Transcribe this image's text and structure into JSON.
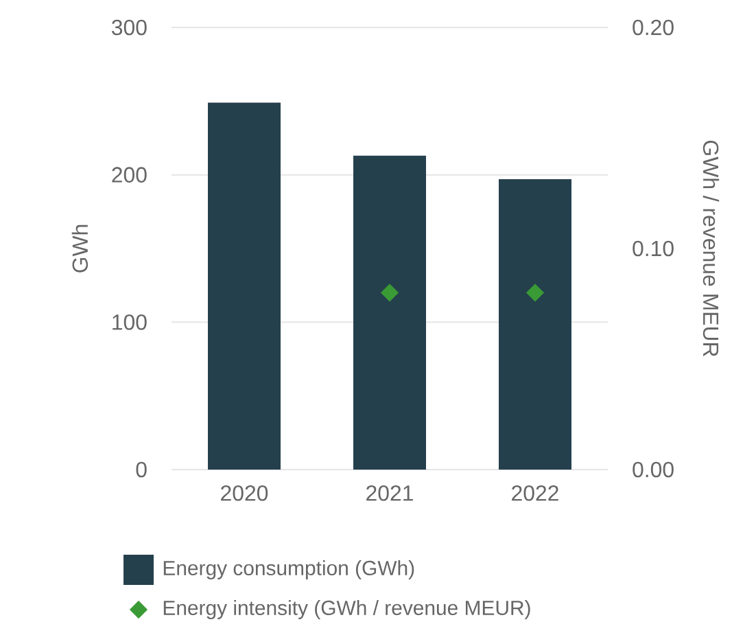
{
  "chart_data": {
    "type": "bar",
    "categories": [
      "2020",
      "2021",
      "2022"
    ],
    "series": [
      {
        "name": "Energy consumption (GWh)",
        "color": "#25404d",
        "values": [
          249,
          213,
          197
        ]
      },
      {
        "name": "Energy intensity (GWh / revenue MEUR)",
        "type": "scatter",
        "axis": "y2",
        "color": "#3a9a35",
        "marker": "diamond",
        "values": [
          null,
          0.08,
          0.08
        ]
      }
    ],
    "ylabel": "GWh",
    "y2label": "GWh /  revenue MEUR",
    "ylim": [
      0,
      300
    ],
    "yticks": [
      0,
      100,
      200,
      300
    ],
    "y2lim": [
      0,
      0.2
    ],
    "y2ticks": [
      {
        "value": 0,
        "label": "0.00"
      },
      {
        "value": 0.1,
        "label": "0.10"
      },
      {
        "value": 0.2,
        "label": "0.20"
      }
    ],
    "grid": "y",
    "legend": "bottom"
  }
}
